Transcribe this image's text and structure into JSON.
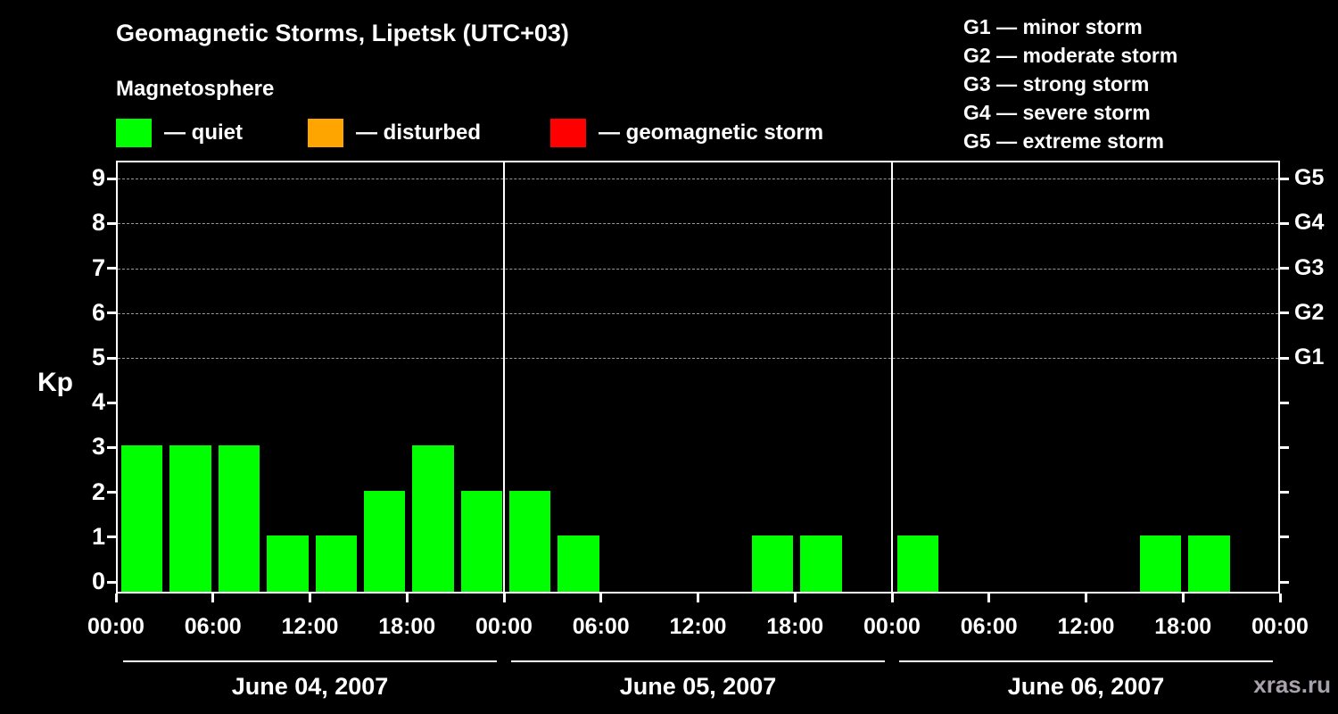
{
  "title": "Geomagnetic Storms, Lipetsk (UTC+03)",
  "subtitle": "Magnetosphere",
  "legend": {
    "quiet": {
      "label": "— quiet",
      "color": "#00ff00"
    },
    "disturbed": {
      "label": "— disturbed",
      "color": "#ffa500"
    },
    "storm": {
      "label": "— geomagnetic storm",
      "color": "#ff0000"
    }
  },
  "storm_levels": [
    {
      "code": "G1",
      "label": "G1 — minor storm"
    },
    {
      "code": "G2",
      "label": "G2 — moderate storm"
    },
    {
      "code": "G3",
      "label": "G3 — strong storm"
    },
    {
      "code": "G4",
      "label": "G4 — severe storm"
    },
    {
      "code": "G5",
      "label": "G5 — extreme storm"
    }
  ],
  "chart_data": {
    "type": "bar",
    "title": "Geomagnetic Storms, Lipetsk (UTC+03)",
    "ylabel": "Kp",
    "ylim": [
      0,
      9
    ],
    "yticks": [
      0,
      1,
      2,
      3,
      4,
      5,
      6,
      7,
      8,
      9
    ],
    "grid_levels_kp": [
      5,
      6,
      7,
      8,
      9
    ],
    "right_axis": [
      {
        "kp": 5,
        "label": "G1"
      },
      {
        "kp": 6,
        "label": "G2"
      },
      {
        "kp": 7,
        "label": "G3"
      },
      {
        "kp": 8,
        "label": "G4"
      },
      {
        "kp": 9,
        "label": "G5"
      }
    ],
    "x_tick_labels": [
      "00:00",
      "06:00",
      "12:00",
      "18:00"
    ],
    "x_tick_final": "00:00",
    "bar_interval_hours": 3,
    "bar_color": "#00ff00",
    "days": [
      {
        "date": "June 04, 2007",
        "kp_values": [
          3,
          3,
          3,
          1,
          1,
          2,
          3,
          2
        ]
      },
      {
        "date": "June 05, 2007",
        "kp_values": [
          2,
          1,
          0,
          0,
          0,
          1,
          1,
          0
        ]
      },
      {
        "date": "June 06, 2007",
        "kp_values": [
          1,
          0,
          0,
          0,
          0,
          1,
          1,
          0
        ]
      }
    ]
  },
  "watermark": "xras.ru"
}
